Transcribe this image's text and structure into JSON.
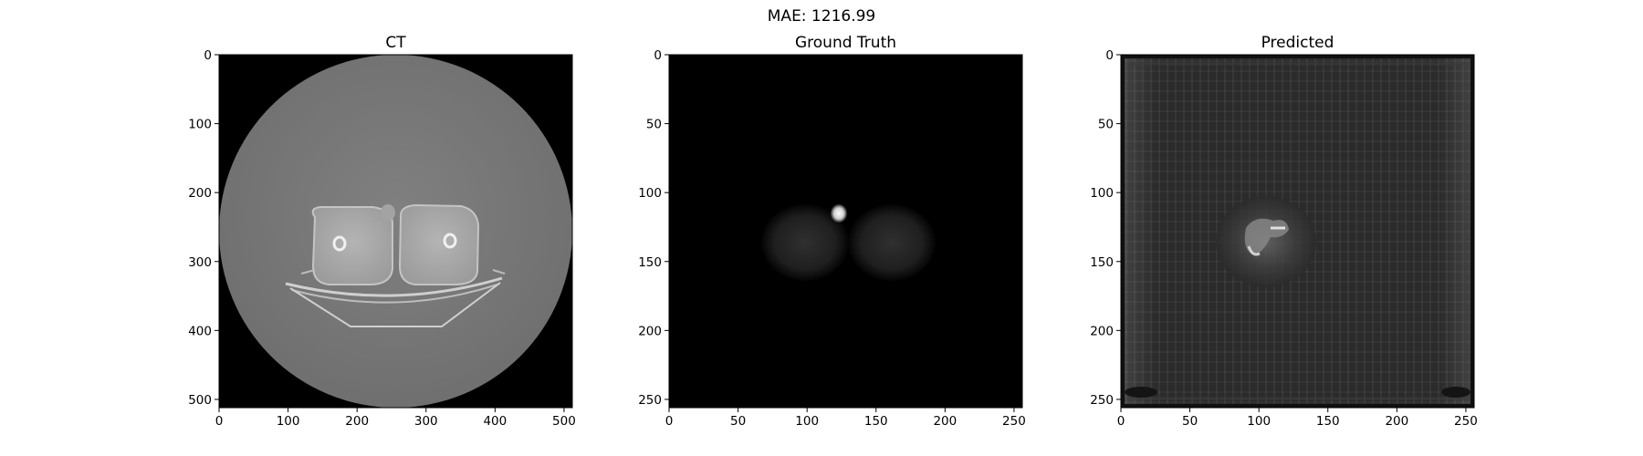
{
  "figure": {
    "suptitle": "MAE: 1216.99"
  },
  "panels": [
    {
      "title": "CT",
      "xticks": [
        "0",
        "100",
        "200",
        "300",
        "400",
        "500"
      ],
      "yticks": [
        "0",
        "100",
        "200",
        "300",
        "400",
        "500"
      ],
      "xtick_values": [
        0,
        100,
        200,
        300,
        400,
        500
      ],
      "ytick_values": [
        0,
        100,
        200,
        300,
        400,
        500
      ],
      "extent": 512
    },
    {
      "title": "Ground Truth",
      "xticks": [
        "0",
        "50",
        "100",
        "150",
        "200",
        "250"
      ],
      "yticks": [
        "0",
        "50",
        "100",
        "150",
        "200",
        "250"
      ],
      "xtick_values": [
        0,
        50,
        100,
        150,
        200,
        250
      ],
      "ytick_values": [
        0,
        50,
        100,
        150,
        200,
        250
      ],
      "extent": 256
    },
    {
      "title": "Predicted",
      "xticks": [
        "0",
        "50",
        "100",
        "150",
        "200",
        "250"
      ],
      "yticks": [
        "0",
        "50",
        "100",
        "150",
        "200",
        "250"
      ],
      "xtick_values": [
        0,
        50,
        100,
        150,
        200,
        250
      ],
      "ytick_values": [
        0,
        50,
        100,
        150,
        200,
        250
      ],
      "extent": 256
    }
  ],
  "colors": {
    "background": "#000000",
    "ct_body": "#7a7a7a",
    "ct_bone": "#d8d8d8",
    "pred_noise": "#2a2a2a"
  }
}
